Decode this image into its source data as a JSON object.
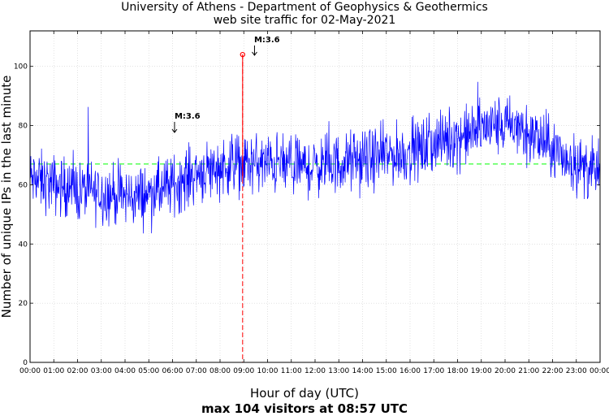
{
  "chart_data": {
    "type": "line",
    "title": "University of Athens - Department of Geophysics & Geothermics",
    "subtitle": "web site traffic for 02-May-2021",
    "xlabel": "Hour of day (UTC)",
    "ylabel": "Number of unique IPs in the last minute",
    "caption": "max 104 visitors at 08:57 UTC",
    "xlim": [
      0,
      24
    ],
    "ylim": [
      0,
      112
    ],
    "x_ticks": [
      "00:00",
      "01:00",
      "02:00",
      "03:00",
      "04:00",
      "05:00",
      "06:00",
      "07:00",
      "08:00",
      "09:00",
      "10:00",
      "11:00",
      "12:00",
      "13:00",
      "14:00",
      "15:00",
      "16:00",
      "17:00",
      "18:00",
      "19:00",
      "20:00",
      "21:00",
      "22:00",
      "23:00",
      "00:00"
    ],
    "y_ticks": [
      0,
      20,
      40,
      60,
      80,
      100
    ],
    "grid": true,
    "line_color": "#0000ff",
    "mean_line": {
      "value": 67,
      "color": "#00ff00"
    },
    "series": [
      {
        "hours": [
          0,
          0.5,
          1,
          1.5,
          2,
          2.5,
          3,
          3.5,
          4,
          4.5,
          5,
          5.5,
          6,
          6.5,
          7,
          7.5,
          8,
          8.5,
          9,
          9.5,
          10,
          10.5,
          11,
          11.5,
          12,
          12.5,
          13,
          13.5,
          14,
          14.5,
          15,
          15.5,
          16,
          16.5,
          17,
          17.5,
          18,
          18.5,
          19,
          19.5,
          20,
          20.5,
          21,
          21.5,
          22,
          22.5,
          23,
          23.5,
          24
        ],
        "values": [
          62,
          61,
          60,
          59,
          58,
          58,
          57,
          57,
          56,
          56,
          57,
          58,
          60,
          62,
          64,
          65,
          66,
          67,
          67,
          67,
          67,
          67,
          66,
          66,
          66,
          67,
          67,
          68,
          68,
          69,
          70,
          70,
          71,
          72,
          74,
          75,
          76,
          77,
          79,
          80,
          80,
          79,
          77,
          75,
          72,
          69,
          67,
          65,
          64
        ]
      }
    ],
    "peak": {
      "hour": 8.95,
      "value": 104,
      "color": "#ff0000"
    },
    "annotations": [
      {
        "label": "M:3.6",
        "hour": 6.05
      },
      {
        "label": "M:3.6",
        "hour": 9.4
      }
    ]
  }
}
